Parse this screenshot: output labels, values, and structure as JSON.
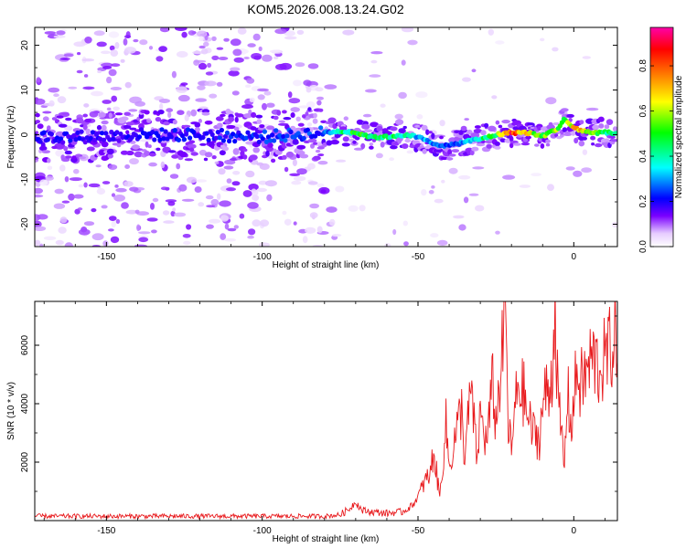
{
  "title": "KOM5.2026.008.13.24.G02",
  "chart_data": [
    {
      "type": "heatmap",
      "name": "spectrogram",
      "xlabel": "Height of straight line (km)",
      "ylabel": "Frequency (Hz)",
      "xlim": [
        -173,
        14
      ],
      "ylim": [
        -25,
        24
      ],
      "xticks": [
        -150,
        -100,
        -50,
        0
      ],
      "yticks": [
        -20,
        -10,
        0,
        10,
        20
      ],
      "xtick_labels": [
        "-150",
        "-100",
        "-50",
        "0"
      ],
      "ytick_labels": [
        "-20",
        "-10",
        "0",
        "10",
        "20"
      ],
      "colorbar": {
        "label": "Normalized spectral amplitude",
        "range": [
          0,
          0.97
        ],
        "ticks": [
          0,
          0.2,
          0.4,
          0.6,
          0.8
        ],
        "tick_labels": [
          "0.0",
          "0.2",
          "0.4",
          "0.6",
          "0.8"
        ],
        "colormap": "rainbow (white-purple-blue-cyan-green-yellow-red-magenta)"
      },
      "signal_trace": {
        "x": [
          -173,
          -160,
          -140,
          -120,
          -100,
          -80,
          -75,
          -70,
          -65,
          -60,
          -55,
          -50,
          -45,
          -40,
          -35,
          -30,
          -25,
          -20,
          -15,
          -10,
          -5,
          -3,
          0,
          5,
          10,
          14
        ],
        "freq": [
          -0.5,
          -0.5,
          0,
          0,
          -0.5,
          0.5,
          0.8,
          0.5,
          -0.5,
          -0.5,
          0,
          -0.5,
          -2,
          -2.5,
          -1.5,
          -1,
          0,
          0.5,
          0.5,
          -0.3,
          1.5,
          3.5,
          1.5,
          0.5,
          0.5,
          0.3
        ],
        "amplitude": [
          0.22,
          0.2,
          0.2,
          0.22,
          0.24,
          0.25,
          0.45,
          0.5,
          0.5,
          0.48,
          0.45,
          0.35,
          0.3,
          0.25,
          0.3,
          0.45,
          0.5,
          0.9,
          0.7,
          0.55,
          0.6,
          0.45,
          0.85,
          0.6,
          0.5,
          0.45
        ]
      }
    },
    {
      "type": "line",
      "name": "snr",
      "xlabel": "Height of straight line (km)",
      "ylabel": "SNR (10 * v/v)",
      "xlim": [
        -173,
        14
      ],
      "ylim": [
        0,
        7500
      ],
      "xticks": [
        -150,
        -100,
        -50,
        0
      ],
      "yticks": [
        2000,
        4000,
        6000
      ],
      "xtick_labels": [
        "-150",
        "-100",
        "-50",
        "0"
      ],
      "ytick_labels": [
        "2000",
        "4000",
        "6000"
      ],
      "color": "#e8191c",
      "x": [
        -173,
        -160,
        -140,
        -120,
        -100,
        -80,
        -75,
        -72,
        -70,
        -68,
        -65,
        -60,
        -55,
        -52,
        -50,
        -48,
        -46,
        -45,
        -43,
        -41,
        -40,
        -38,
        -36,
        -35,
        -33,
        -31,
        -30,
        -28,
        -26,
        -25,
        -23,
        -22,
        -21,
        -20,
        -18,
        -16,
        -15,
        -13,
        -11,
        -10,
        -9,
        -8,
        -7,
        -6,
        -5,
        -4,
        -3,
        -2,
        -1,
        0,
        1,
        2,
        4,
        6,
        8,
        10,
        12,
        14
      ],
      "y": [
        150,
        150,
        150,
        150,
        150,
        150,
        200,
        400,
        650,
        350,
        300,
        250,
        300,
        500,
        800,
        1300,
        1600,
        2400,
        800,
        3300,
        1800,
        2900,
        3800,
        2100,
        4500,
        2000,
        3700,
        2600,
        4700,
        3300,
        5700,
        7500,
        3200,
        2400,
        4700,
        4300,
        3600,
        3000,
        2800,
        3900,
        4400,
        4200,
        5100,
        7500,
        3900,
        3000,
        1800,
        4500,
        3200,
        4000,
        5200,
        4600,
        5000,
        5600,
        5200,
        5500,
        5900,
        6600
      ]
    }
  ]
}
